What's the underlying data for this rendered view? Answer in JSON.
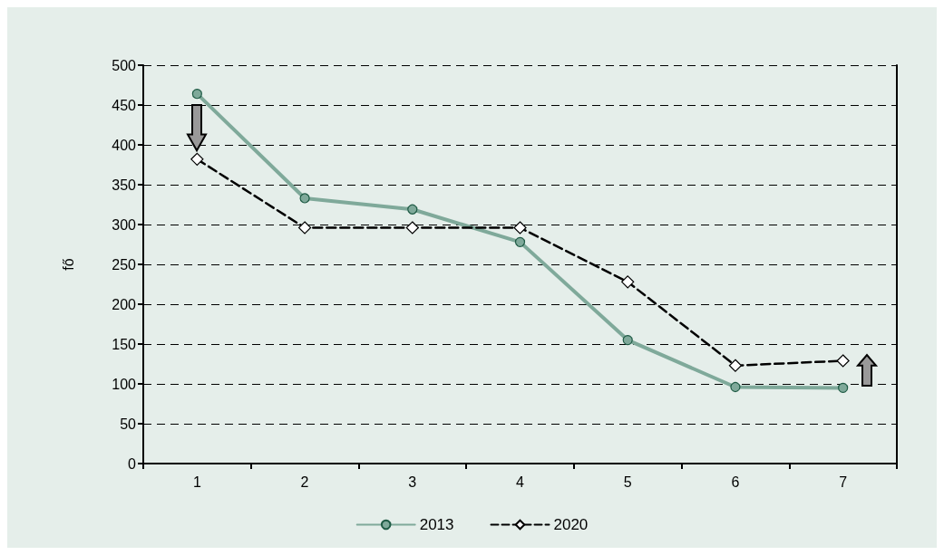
{
  "chart_data": {
    "type": "line",
    "ylabel": "fő",
    "categories": [
      "1",
      "2",
      "3",
      "4",
      "5",
      "6",
      "7"
    ],
    "series": [
      {
        "name": "2013",
        "color": "#7fa99a",
        "marker": "circle",
        "line_style": "solid",
        "values": [
          464,
          333,
          319,
          278,
          155,
          96,
          95
        ]
      },
      {
        "name": "2020",
        "color": "#000000",
        "marker": "diamond",
        "line_style": "dashed",
        "values": [
          382,
          296,
          296,
          296,
          228,
          123,
          129
        ]
      }
    ],
    "ylim": [
      0,
      500
    ],
    "yticks": [
      0,
      50,
      100,
      150,
      200,
      250,
      300,
      350,
      400,
      450,
      500
    ],
    "grid": "y",
    "legend": "bottom"
  }
}
